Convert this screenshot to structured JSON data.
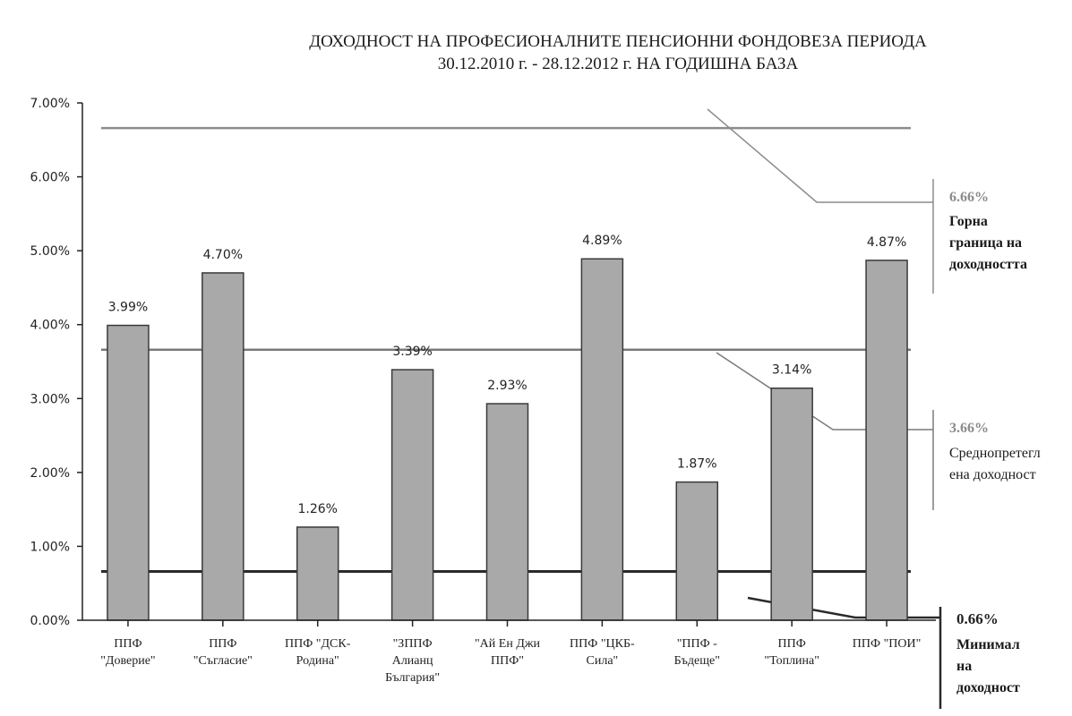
{
  "chart_data": {
    "type": "bar",
    "title": "ДОХОДНОСТ НА ПРОФЕСИОНАЛНИТЕ ПЕНСИОННИ ФОНДОВЕЗА ПЕРИОДА",
    "subtitle": "30.12.2010 г. - 28.12.2012 г. НА ГОДИШНА БАЗА",
    "xlabel": "",
    "ylabel": "",
    "ylim": [
      0,
      7
    ],
    "yticks": [
      "0.00%",
      "1.00%",
      "2.00%",
      "3.00%",
      "4.00%",
      "5.00%",
      "6.00%",
      "7.00%"
    ],
    "grid": false,
    "categories": [
      [
        "ППФ",
        "\"Доверие\""
      ],
      [
        "ППФ",
        "\"Съгласие\""
      ],
      [
        "ППФ \"ДСК-",
        "Родина\""
      ],
      [
        "\"ЗППФ",
        "Алианц",
        "България\""
      ],
      [
        "\"Ай Ен Джи",
        "ППФ\""
      ],
      [
        "ППФ \"ЦКБ-",
        "Сила\""
      ],
      [
        "\"ППФ -",
        "Бъдеще\""
      ],
      [
        "ППФ",
        "\"Топлина\""
      ],
      [
        "ППФ \"ПОИ\""
      ]
    ],
    "values": [
      3.99,
      4.7,
      1.26,
      3.39,
      2.93,
      4.89,
      1.87,
      3.14,
      4.87
    ],
    "value_labels": [
      "3.99%",
      "4.70%",
      "1.26%",
      "3.39%",
      "2.93%",
      "4.89%",
      "1.87%",
      "3.14%",
      "4.87%"
    ],
    "reference_lines": [
      {
        "value": 6.66,
        "label_value": "6.66%",
        "label_lines": [
          "Горна",
          "граница на",
          "доходността"
        ],
        "color": "#8c8c8c"
      },
      {
        "value": 3.66,
        "label_value": "3.66%",
        "label_lines": [
          "Среднопретегл",
          "ена доходност"
        ],
        "color": "#7a7a7a"
      },
      {
        "value": 0.66,
        "label_value": "0.66%",
        "label_lines": [
          "Минимал",
          "на",
          "доходност"
        ],
        "color": "#2a2a2a"
      }
    ]
  }
}
